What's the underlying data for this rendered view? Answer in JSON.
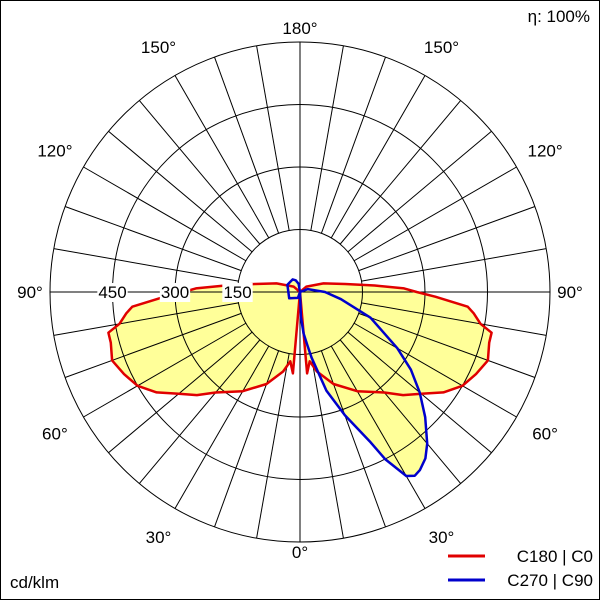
{
  "chart_data": {
    "type": "polar",
    "title": "",
    "efficiency_label": "η: 100%",
    "unit_label": "cd/klm",
    "radial_ticks": [
      150,
      300,
      450
    ],
    "radial_max": 600,
    "angle_labels": {
      "0": "0°",
      "30": "30°",
      "60": "60°",
      "90": "90°",
      "120": "120°",
      "150": "150°",
      "180": "180°"
    },
    "series": [
      {
        "name": "C180 | C0",
        "color": "#e00000",
        "fill": "#ffff99",
        "left_points": [
          [
            0,
            0
          ],
          [
            5,
            196
          ],
          [
            8,
            168
          ],
          [
            12,
            195
          ],
          [
            20,
            235
          ],
          [
            30,
            275
          ],
          [
            40,
            315
          ],
          [
            45,
            350
          ],
          [
            50,
            380
          ],
          [
            55,
            420
          ],
          [
            60,
            450
          ],
          [
            65,
            466
          ],
          [
            70,
            480
          ],
          [
            75,
            470
          ],
          [
            78,
            470
          ],
          [
            80,
            440
          ],
          [
            83,
            420
          ],
          [
            85,
            404
          ],
          [
            88,
            325
          ],
          [
            90,
            280
          ],
          [
            92,
            250
          ],
          [
            95,
            180
          ],
          [
            100,
            110
          ],
          [
            110,
            60
          ],
          [
            130,
            20
          ],
          [
            180,
            0
          ]
        ],
        "right_points": [
          [
            0,
            0
          ],
          [
            5,
            196
          ],
          [
            8,
            168
          ],
          [
            12,
            195
          ],
          [
            20,
            235
          ],
          [
            30,
            275
          ],
          [
            40,
            315
          ],
          [
            45,
            350
          ],
          [
            50,
            380
          ],
          [
            55,
            420
          ],
          [
            60,
            450
          ],
          [
            65,
            466
          ],
          [
            70,
            480
          ],
          [
            75,
            470
          ],
          [
            78,
            470
          ],
          [
            80,
            440
          ],
          [
            83,
            420
          ],
          [
            85,
            404
          ],
          [
            88,
            325
          ],
          [
            90,
            280
          ],
          [
            92,
            250
          ],
          [
            95,
            180
          ],
          [
            100,
            110
          ],
          [
            110,
            60
          ],
          [
            130,
            20
          ],
          [
            180,
            0
          ]
        ]
      },
      {
        "name": "C270 | C90",
        "color": "#0000cc",
        "fill": "#ffff99",
        "left_points": [
          [
            0,
            0
          ],
          [
            20,
            15
          ],
          [
            60,
            30
          ],
          [
            120,
            35
          ],
          [
            150,
            35
          ],
          [
            160,
            30
          ],
          [
            170,
            20
          ],
          [
            180,
            0
          ]
        ],
        "right_points": [
          [
            0,
            0
          ],
          [
            2,
            60
          ],
          [
            5,
            100
          ],
          [
            8,
            130
          ],
          [
            10,
            160
          ],
          [
            15,
            245
          ],
          [
            20,
            315
          ],
          [
            25,
            395
          ],
          [
            27,
            450
          ],
          [
            30,
            510
          ],
          [
            32,
            520
          ],
          [
            34,
            515
          ],
          [
            37,
            500
          ],
          [
            40,
            475
          ],
          [
            45,
            425
          ],
          [
            50,
            375
          ],
          [
            55,
            325
          ],
          [
            60,
            270
          ],
          [
            70,
            180
          ],
          [
            80,
            100
          ],
          [
            90,
            60
          ],
          [
            110,
            20
          ],
          [
            180,
            0
          ]
        ]
      }
    ],
    "legend_position": "bottom-right",
    "grid": true
  }
}
